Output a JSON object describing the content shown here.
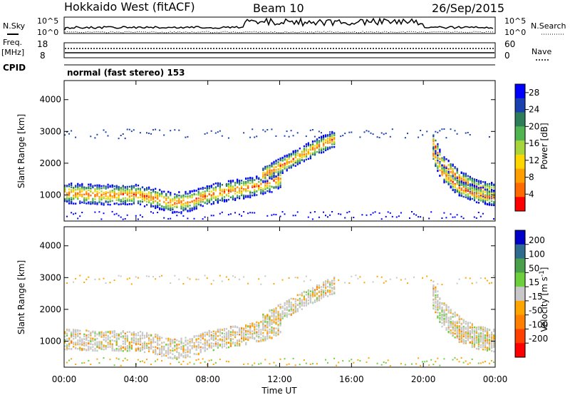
{
  "header": {
    "title": "Hokkaido West (fitACF)",
    "beam": "Beam 10",
    "date": "26/Sep/2015"
  },
  "status_panel": {
    "nsky_label": "N.Sky",
    "nsearch_label": "N.Search",
    "noise_ticks": [
      "10^5",
      "10^0"
    ],
    "freq_label": "Freq.",
    "freq_unit": "[MHz]",
    "freq_ticks": [
      "18",
      "8"
    ],
    "nave_label": "Nave",
    "nave_ticks": [
      "60",
      "0"
    ],
    "cpid_label": "CPID",
    "cpid_value": "normal (fast stereo) 153"
  },
  "chart_data": [
    {
      "type": "heatmap",
      "title": "",
      "xlabel": "",
      "ylabel": "Slant Range [km]",
      "xlim": [
        0,
        24
      ],
      "ylim": [
        180,
        4600
      ],
      "x_ticks": [
        "00:00",
        "04:00",
        "08:00",
        "12:00",
        "16:00",
        "20:00",
        "00:00"
      ],
      "y_ticks": [
        "1000",
        "2000",
        "3000",
        "4000"
      ],
      "colorbar": {
        "label": "Power [dB]",
        "ticks": [
          "4",
          "8",
          "12",
          "16",
          "20",
          "24",
          "28"
        ],
        "range": [
          0,
          30
        ],
        "colors": [
          "#0000ff",
          "#1a3fae",
          "#2e7d5a",
          "#50b450",
          "#a6d63c",
          "#ffd700",
          "#ff9e00",
          "#ff6a00",
          "#ff0000"
        ]
      },
      "echo_bands": [
        {
          "name": "main",
          "x": [
            0,
            2,
            4,
            5,
            6,
            7,
            8,
            9,
            10,
            11,
            12
          ],
          "y_center": [
            1050,
            1000,
            1000,
            900,
            750,
            800,
            1000,
            1100,
            1200,
            1300,
            1500
          ]
        },
        {
          "name": "ascending",
          "x": [
            11,
            12,
            13,
            14,
            15
          ],
          "y_center": [
            1600,
            1900,
            2200,
            2500,
            2750
          ]
        },
        {
          "name": "descending",
          "x": [
            20.5,
            21,
            22,
            23,
            24
          ],
          "y_center": [
            2700,
            2000,
            1500,
            1200,
            1100
          ]
        },
        {
          "name": "descending-inner",
          "x": [
            20.5,
            21,
            22,
            23,
            24
          ],
          "y_center": [
            2300,
            1700,
            1200,
            1000,
            900
          ]
        }
      ]
    },
    {
      "type": "heatmap",
      "title": "",
      "xlabel": "Time UT",
      "ylabel": "Slant Range [km]",
      "xlim": [
        0,
        24
      ],
      "ylim": [
        180,
        4600
      ],
      "x_ticks": [
        "00:00",
        "04:00",
        "08:00",
        "12:00",
        "16:00",
        "20:00",
        "00:00"
      ],
      "y_ticks": [
        "1000",
        "2000",
        "3000",
        "4000"
      ],
      "colorbar": {
        "label": "Velocity [m s^-1]",
        "ticks": [
          "200",
          "100",
          "50",
          "15",
          "-15",
          "-50",
          "-100",
          "-200"
        ],
        "colors": [
          "#0000c8",
          "#2e6b8e",
          "#4aa04a",
          "#6ccf3c",
          "#c8c8c8",
          "#ffa500",
          "#ff7f00",
          "#ff4000",
          "#ff0000"
        ]
      },
      "dominant_velocity_m_s": 0
    }
  ]
}
